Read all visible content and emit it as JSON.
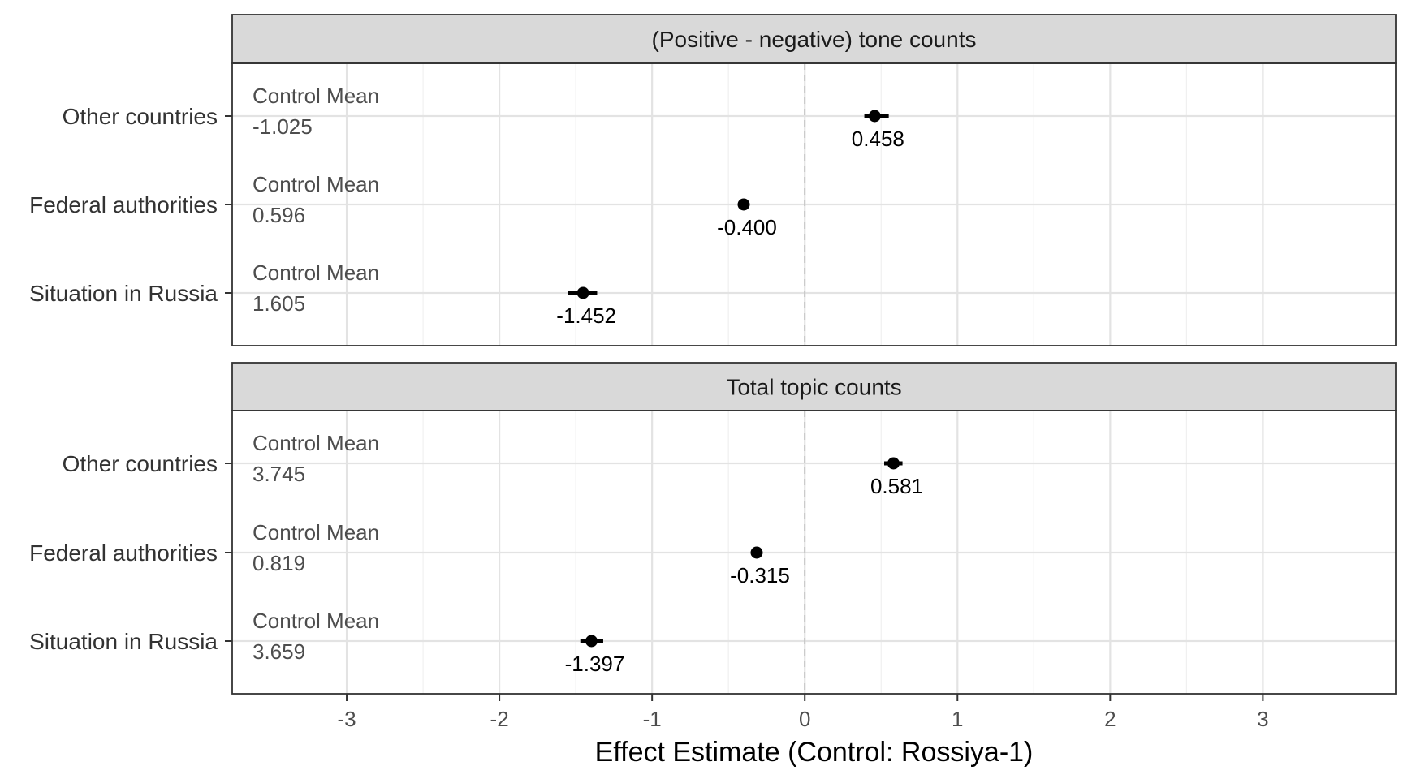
{
  "chart_data": {
    "type": "scatter",
    "xlabel": "Effect Estimate (Control: Rossiya-1)",
    "xlim": [
      -3.75,
      3.87
    ],
    "xticks": [
      -3,
      -2,
      -1,
      0,
      1,
      2,
      3
    ],
    "xtick_labels": [
      "-3",
      "-2",
      "-1",
      "0",
      "1",
      "2",
      "3"
    ],
    "reference_line": 0,
    "grid": true,
    "control_mean_label": "Control Mean",
    "panels": [
      {
        "title": "(Positive - negative) tone counts",
        "rows": [
          {
            "category": "Other countries",
            "estimate": 0.458,
            "estimate_label": "0.458",
            "ci": [
              0.39,
              0.55
            ],
            "control_mean": "-1.025"
          },
          {
            "category": "Federal authorities",
            "estimate": -0.4,
            "estimate_label": "-0.400",
            "ci": [
              -0.43,
              -0.37
            ],
            "control_mean": "0.596"
          },
          {
            "category": "Situation in Russia",
            "estimate": -1.452,
            "estimate_label": "-1.452",
            "ci": [
              -1.55,
              -1.36
            ],
            "control_mean": "1.605"
          }
        ]
      },
      {
        "title": "Total topic counts",
        "rows": [
          {
            "category": "Other countries",
            "estimate": 0.581,
            "estimate_label": "0.581",
            "ci": [
              0.52,
              0.64
            ],
            "control_mean": "3.745"
          },
          {
            "category": "Federal authorities",
            "estimate": -0.315,
            "estimate_label": "-0.315",
            "ci": [
              -0.34,
              -0.29
            ],
            "control_mean": "0.819"
          },
          {
            "category": "Situation in Russia",
            "estimate": -1.397,
            "estimate_label": "-1.397",
            "ci": [
              -1.47,
              -1.32
            ],
            "control_mean": "3.659"
          }
        ]
      }
    ]
  }
}
